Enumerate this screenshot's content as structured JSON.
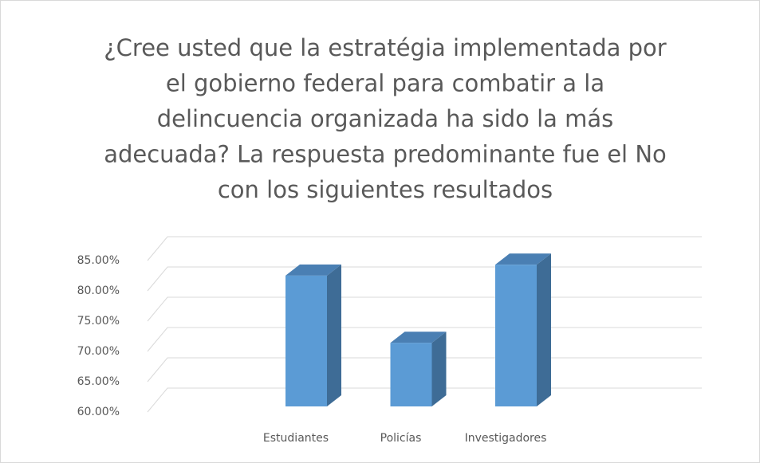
{
  "chart_data": {
    "type": "bar3d",
    "title": [
      "¿Cree usted que la estratégia implementada por",
      "el gobierno  federal para combatir a la",
      "delincuencia organizada ha sido la más",
      "adecuada? La respuesta predominante fue el No",
      "con los siguientes resultados"
    ],
    "categories": [
      "Estudiantes",
      "Policías",
      "Investigadores"
    ],
    "values": [
      81.6,
      70.5,
      83.4
    ],
    "color": "#5b9bd5",
    "ylim": [
      60,
      85
    ],
    "yticks": [
      {
        "value": 60,
        "label": "60.00%"
      },
      {
        "value": 65,
        "label": "65.00%"
      },
      {
        "value": 70,
        "label": "70.00%"
      },
      {
        "value": 75,
        "label": "75.00%"
      },
      {
        "value": 80,
        "label": "80.00%"
      },
      {
        "value": 85,
        "label": "85.00%"
      }
    ],
    "grid": true
  }
}
